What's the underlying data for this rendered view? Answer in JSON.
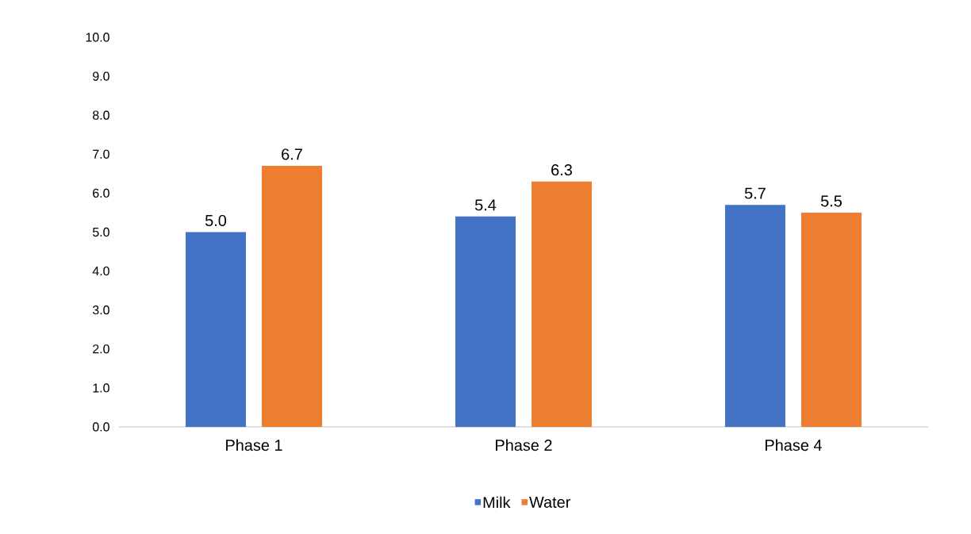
{
  "chart_data": {
    "type": "bar",
    "categories": [
      "Phase 1",
      "Phase 2",
      "Phase 4"
    ],
    "series": [
      {
        "name": "Milk",
        "color": "#4472c4",
        "values": [
          5.0,
          5.4,
          5.7
        ],
        "value_labels": [
          "5.0",
          "5.4",
          "5.7"
        ]
      },
      {
        "name": "Water",
        "color": "#ed7d31",
        "values": [
          6.7,
          6.3,
          5.5
        ],
        "value_labels": [
          "6.7",
          "6.3",
          "5.5"
        ]
      }
    ],
    "ylim": [
      0,
      10
    ],
    "yticks": [
      {
        "value": 0,
        "label": "0.0"
      },
      {
        "value": 1,
        "label": "1.0"
      },
      {
        "value": 2,
        "label": "2.0"
      },
      {
        "value": 3,
        "label": "3.0"
      },
      {
        "value": 4,
        "label": "4.0"
      },
      {
        "value": 5,
        "label": "5.0"
      },
      {
        "value": 6,
        "label": "6.0"
      },
      {
        "value": 7,
        "label": "7.0"
      },
      {
        "value": 8,
        "label": "8.0"
      },
      {
        "value": 9,
        "label": "9.0"
      },
      {
        "value": 10,
        "label": "10.0"
      }
    ],
    "grid": false,
    "legend": "bottom"
  }
}
